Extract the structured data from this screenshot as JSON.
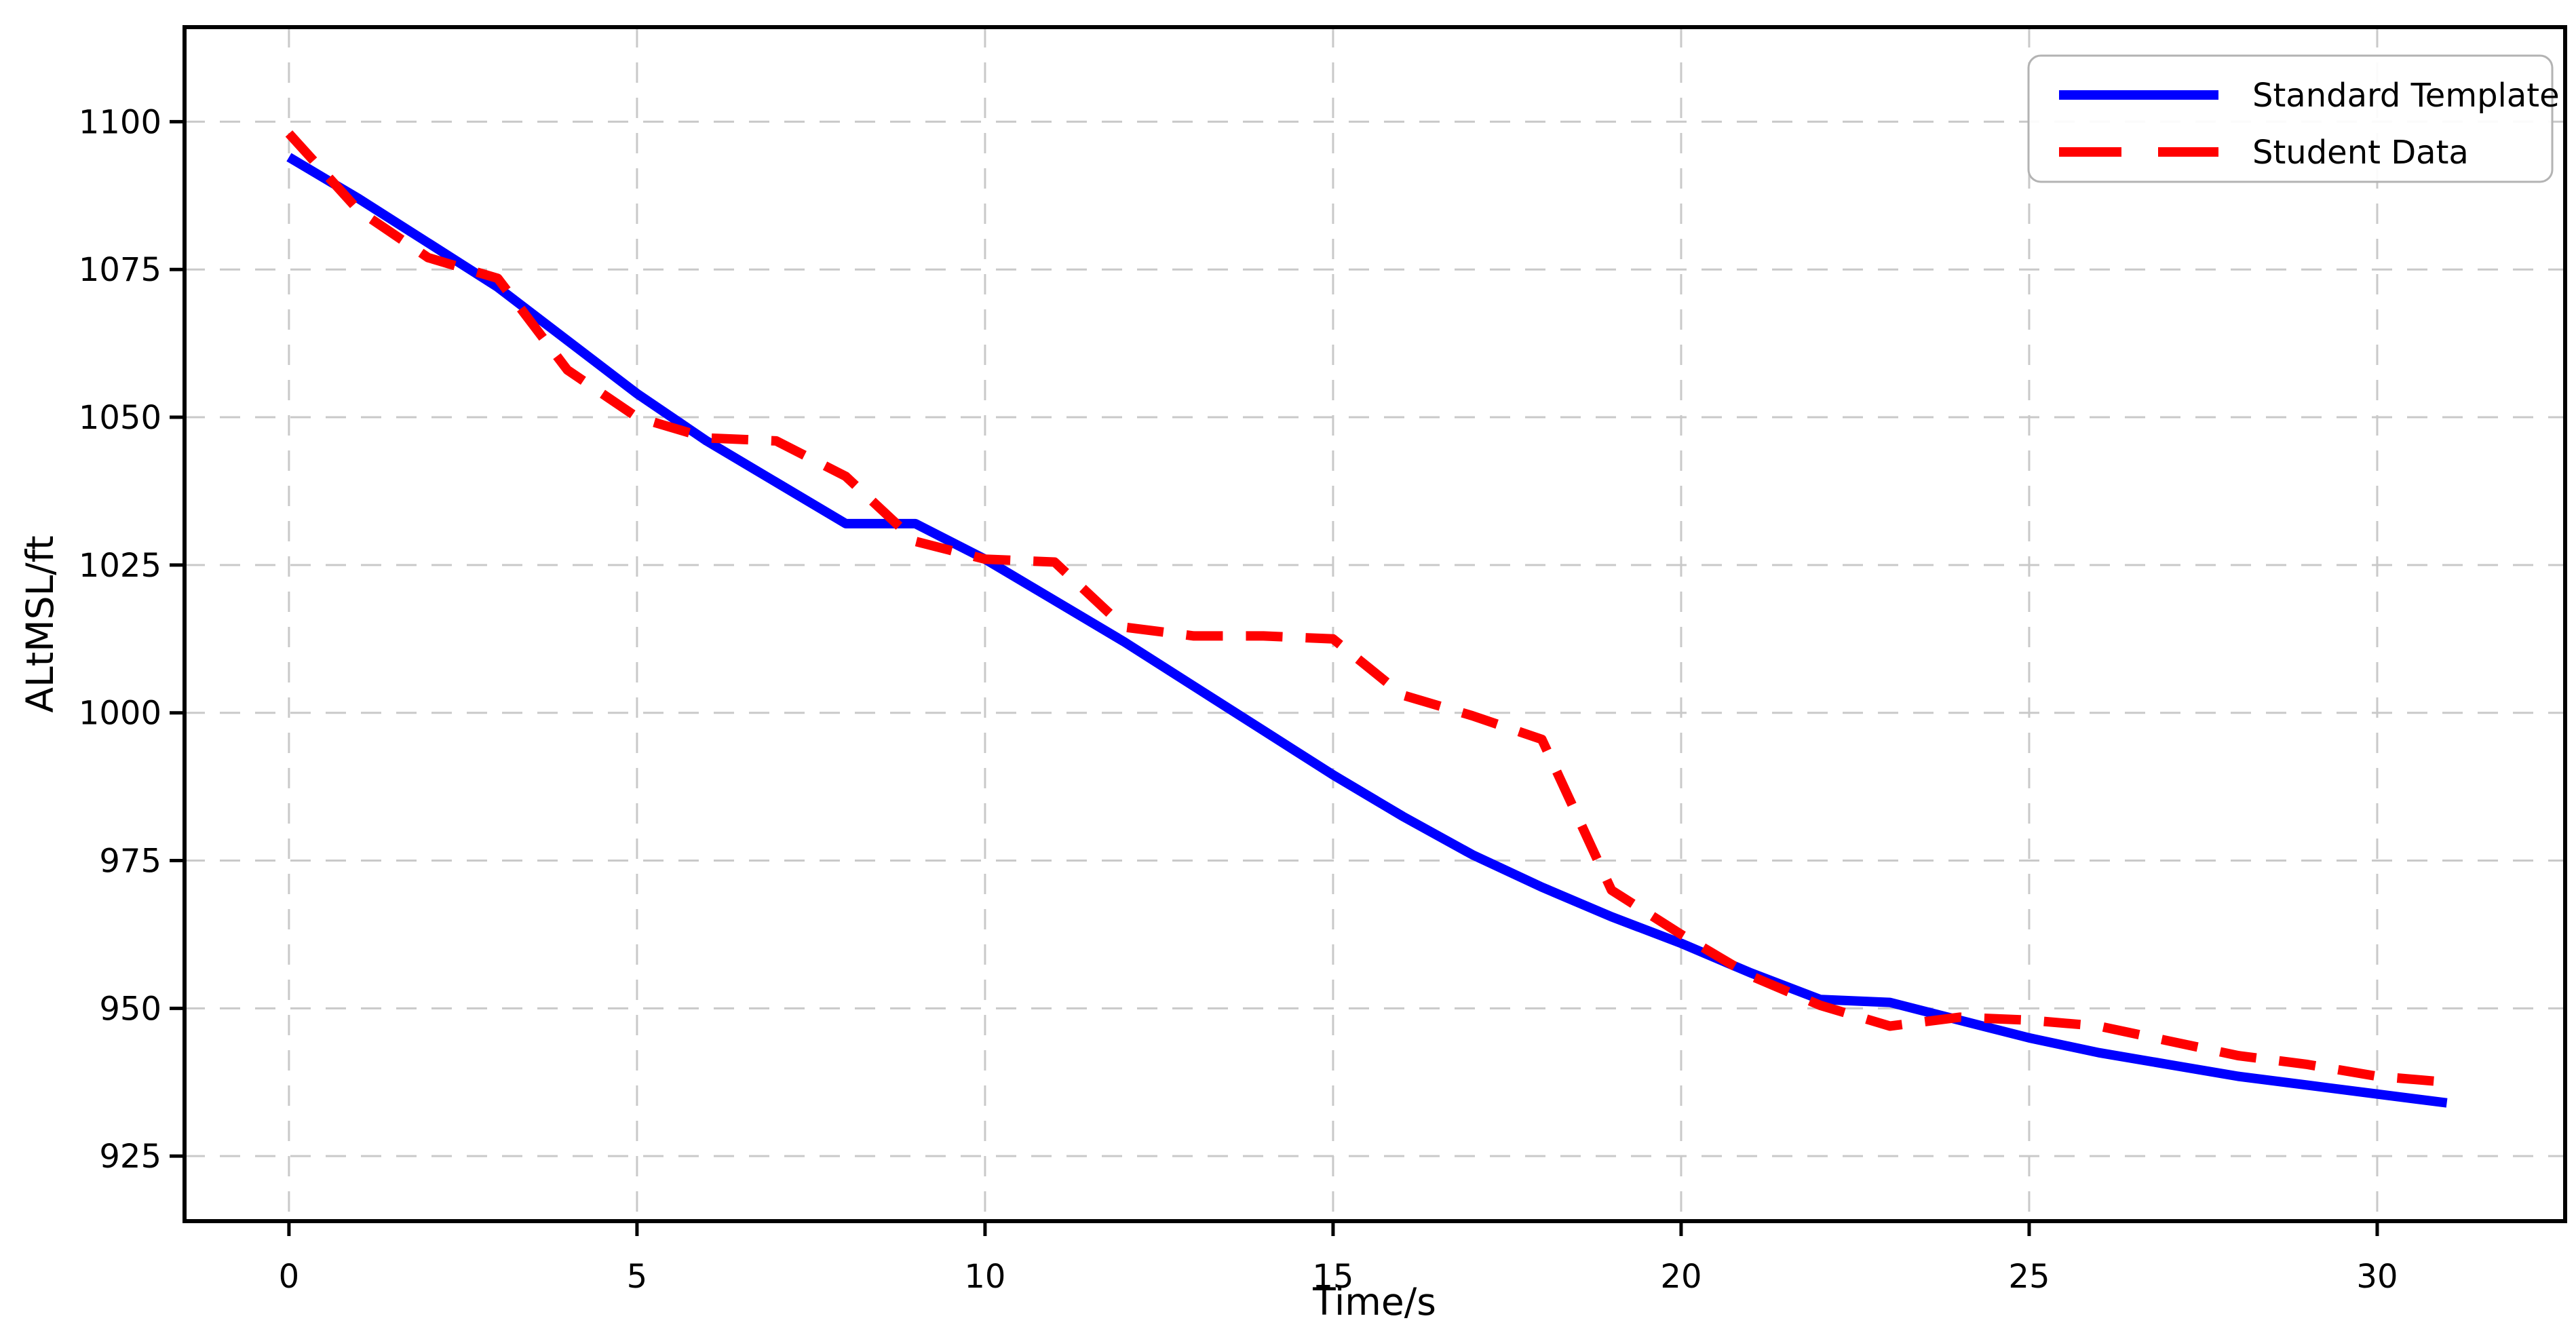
{
  "figure": {
    "background": "#ffffff"
  },
  "chart_data": {
    "type": "line",
    "title": "",
    "xlabel": "Time/s",
    "ylabel": "ALtMSL/ft",
    "xlim": [
      -1.5,
      32.7
    ],
    "ylim": [
      914,
      1116
    ],
    "x_ticks": [
      0,
      5,
      10,
      15,
      20,
      25,
      30
    ],
    "y_ticks": [
      925,
      950,
      975,
      1000,
      1025,
      1050,
      1075,
      1100
    ],
    "grid": true,
    "grid_style": "dashed",
    "grid_color": "#c9c9c9",
    "spine_color": "#000000",
    "legend_position": "upper right",
    "x": [
      0,
      1,
      2,
      3,
      4,
      5,
      6,
      7,
      8,
      9,
      10,
      11,
      12,
      13,
      14,
      15,
      16,
      17,
      18,
      19,
      20,
      21,
      22,
      23,
      24,
      25,
      26,
      27,
      28,
      29,
      30,
      31
    ],
    "series": [
      {
        "name": "Standard Template",
        "color": "#0000ff",
        "style": "solid",
        "line_width": 14,
        "values": [
          1094,
          1087,
          1079.5,
          1072,
          1063,
          1054,
          1046,
          1039,
          1032,
          1032,
          1026,
          1019,
          1012,
          1004.5,
          997,
          989.5,
          982.5,
          976,
          970.5,
          965.5,
          961,
          956,
          951.5,
          951,
          948,
          945,
          942.5,
          940.5,
          938.5,
          937,
          935.5,
          934
        ]
      },
      {
        "name": "Student Data",
        "color": "#ff0000",
        "style": "dashed",
        "line_width": 14,
        "values": [
          1098,
          1085,
          1077,
          1073.5,
          1058,
          1050,
          1046.5,
          1046,
          1040,
          1029,
          1026,
          1025.5,
          1014.5,
          1013,
          1013,
          1012.5,
          1003,
          999.5,
          995.5,
          970,
          962.5,
          955.5,
          950.5,
          947,
          948.5,
          948,
          947,
          944.5,
          942,
          940.5,
          938.5,
          937.5
        ]
      }
    ]
  }
}
